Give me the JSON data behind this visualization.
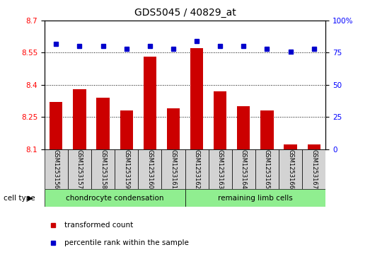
{
  "title": "GDS5045 / 40829_at",
  "samples": [
    "GSM1253156",
    "GSM1253157",
    "GSM1253158",
    "GSM1253159",
    "GSM1253160",
    "GSM1253161",
    "GSM1253162",
    "GSM1253163",
    "GSM1253164",
    "GSM1253165",
    "GSM1253166",
    "GSM1253167"
  ],
  "transformed_count": [
    8.32,
    8.38,
    8.34,
    8.28,
    8.53,
    8.29,
    8.57,
    8.37,
    8.3,
    8.28,
    8.12,
    8.12
  ],
  "percentile_rank": [
    82,
    80,
    80,
    78,
    80,
    78,
    84,
    80,
    80,
    78,
    76,
    78
  ],
  "ylim_left": [
    8.1,
    8.7
  ],
  "ylim_right": [
    0,
    100
  ],
  "yticks_left": [
    8.1,
    8.25,
    8.4,
    8.55,
    8.7
  ],
  "yticks_right": [
    0,
    25,
    50,
    75,
    100
  ],
  "bar_color": "#CC0000",
  "dot_color": "#0000CC",
  "label_transformed": "transformed count",
  "label_percentile": "percentile rank within the sample",
  "cell_type_label": "cell type",
  "group1_label": "chondrocyte condensation",
  "group2_label": "remaining limb cells",
  "group_color": "#90EE90",
  "box_color": "#D3D3D3",
  "title_fontsize": 10,
  "tick_fontsize": 7.5,
  "sample_fontsize": 6,
  "legend_fontsize": 7.5,
  "group_fontsize": 7.5,
  "celltype_fontsize": 7.5
}
